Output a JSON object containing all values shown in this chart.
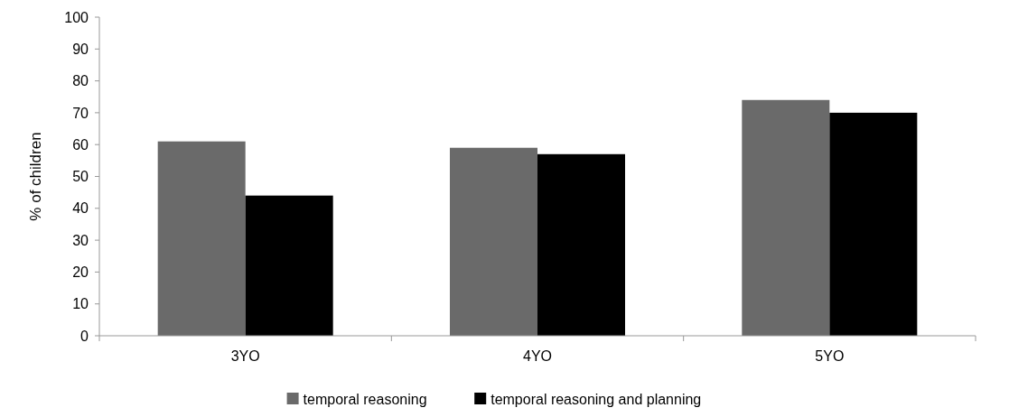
{
  "chart_data": {
    "type": "bar",
    "ylabel": "% of children",
    "categories": [
      "3YO",
      "4YO",
      "5YO"
    ],
    "series": [
      {
        "name": "temporal reasoning",
        "color": "#6a6a6a",
        "values": [
          61,
          59,
          74
        ]
      },
      {
        "name": "temporal reasoning and planning",
        "color": "#000000",
        "values": [
          44,
          57,
          70
        ]
      }
    ],
    "ylim": [
      0,
      100
    ],
    "yticks": [
      0,
      10,
      20,
      30,
      40,
      50,
      60,
      70,
      80,
      90,
      100
    ],
    "grid": false,
    "legend": "bottom"
  }
}
